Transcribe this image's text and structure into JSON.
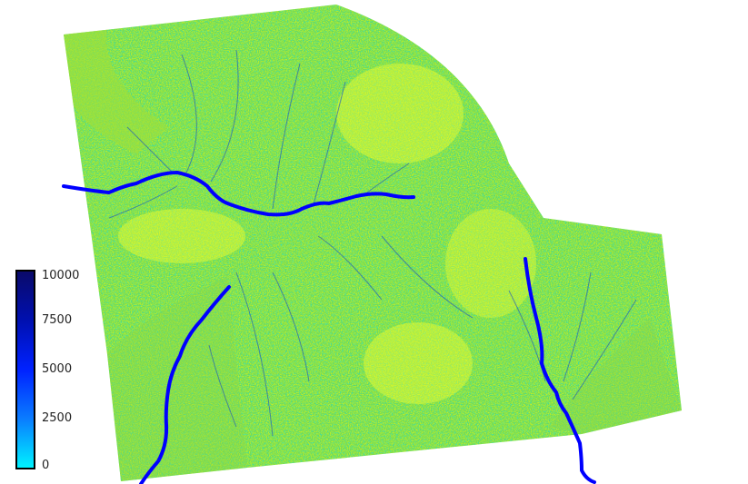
{
  "legend": {
    "ticks": [
      "10000",
      "7500",
      "5000",
      "2500",
      "0"
    ],
    "colors": [
      "#0a0a6a",
      "#0010b0",
      "#0022ff",
      "#0a7cff",
      "#00f2ff"
    ]
  },
  "map": {
    "palette": {
      "low": "#ffff00",
      "mid": "#7ddc2a",
      "high": "#00d0ff",
      "channel": "#0000ff",
      "background": "#ffffff"
    }
  }
}
